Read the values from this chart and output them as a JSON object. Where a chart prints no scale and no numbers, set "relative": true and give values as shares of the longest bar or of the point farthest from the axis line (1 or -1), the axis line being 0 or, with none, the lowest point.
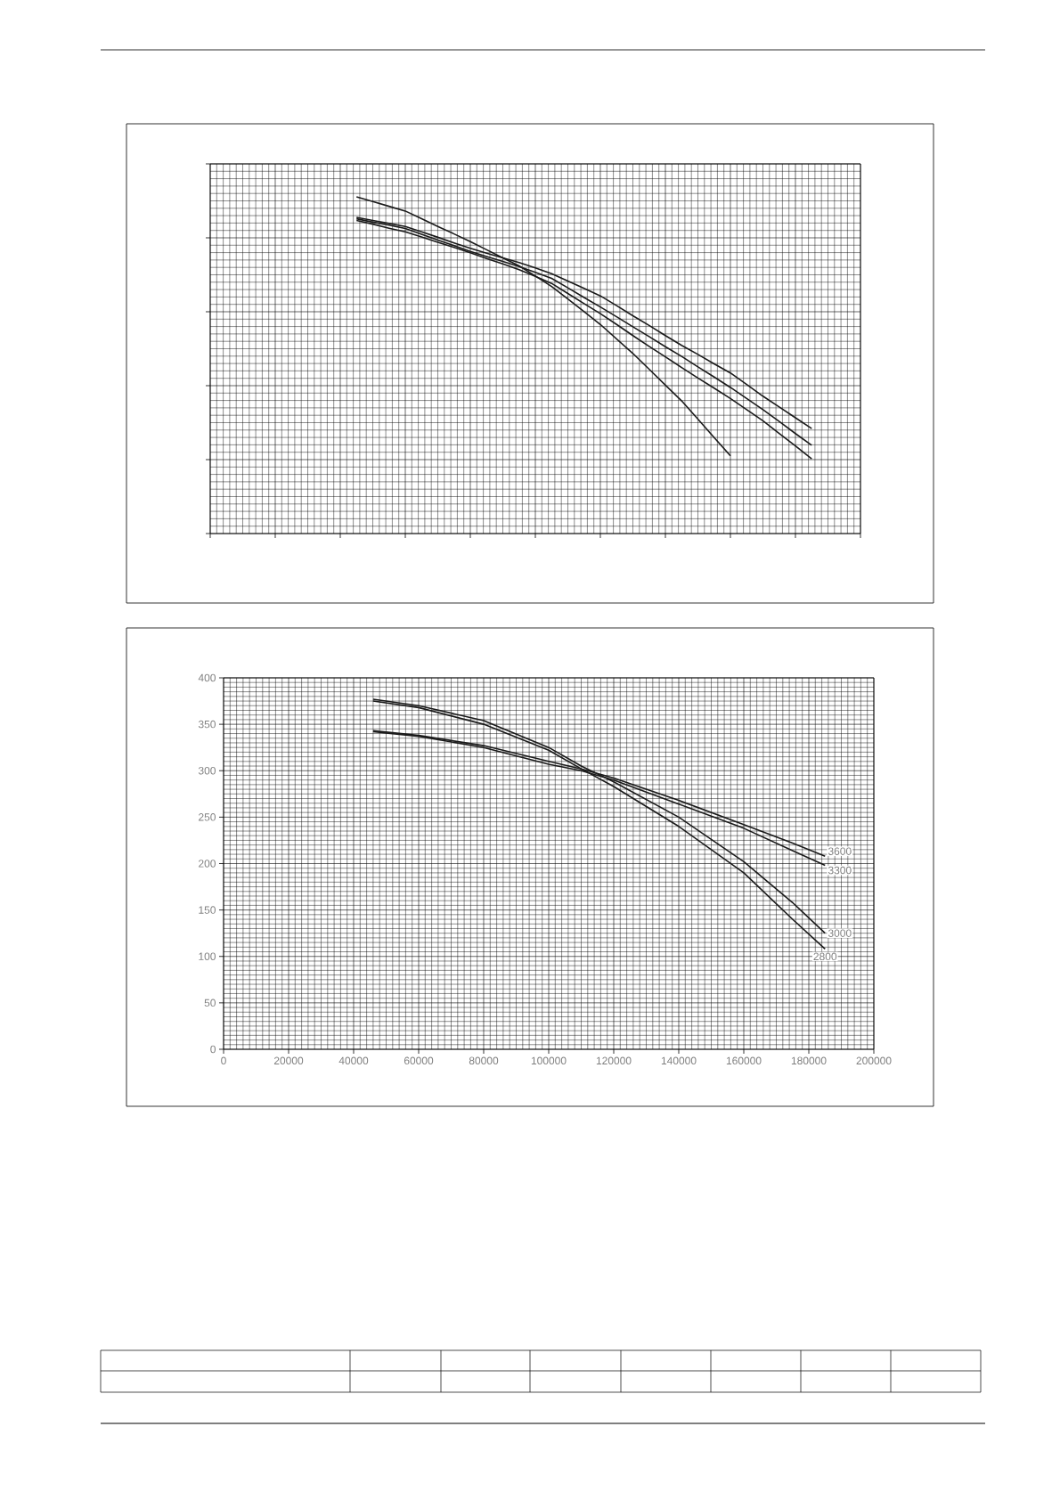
{
  "chart_data": [
    {
      "type": "line",
      "relative": true,
      "grid": true,
      "categories": [
        null,
        null,
        null,
        null,
        null,
        null,
        null,
        null,
        null,
        null,
        null,
        null,
        null,
        null,
        null,
        null,
        null,
        null,
        null,
        null,
        null,
        null,
        null,
        null,
        null,
        null,
        null,
        null,
        null,
        null,
        null,
        null,
        null,
        null,
        null,
        null,
        null,
        null,
        null,
        null,
        null
      ],
      "series": [
        {
          "color": "#1a1a1a",
          "values": [
            null,
            null,
            null,
            null,
            null,
            null,
            null,
            null,
            null,
            1,
            0.986,
            0.972,
            0.958,
            0.935,
            0.912,
            0.89,
            0.867,
            0.843,
            0.819,
            0.795,
            0.765,
            0.734,
            0.697,
            0.659,
            0.621,
            0.578,
            0.535,
            0.488,
            0.441,
            0.394,
            0.34,
            0.285,
            0.231,
            null,
            null,
            null,
            null,
            null,
            null,
            null,
            null
          ]
        },
        {
          "color": "#1a1a1a",
          "values": [
            null,
            null,
            null,
            null,
            null,
            null,
            null,
            null,
            null,
            0.939,
            0.93,
            0.921,
            0.912,
            0.896,
            0.88,
            0.863,
            0.847,
            0.833,
            0.819,
            0.805,
            0.789,
            0.772,
            0.75,
            0.728,
            0.706,
            0.677,
            0.647,
            0.618,
            0.588,
            0.559,
            0.532,
            0.504,
            0.477,
            0.443,
            0.408,
            0.376,
            0.344,
            0.312,
            null,
            null,
            null
          ]
        },
        {
          "color": "#1a1a1a",
          "values": [
            null,
            null,
            null,
            null,
            null,
            null,
            null,
            null,
            null,
            0.935,
            0.925,
            0.916,
            0.906,
            0.889,
            0.872,
            0.855,
            0.838,
            0.823,
            0.808,
            0.793,
            0.776,
            0.758,
            0.73,
            0.701,
            0.673,
            0.644,
            0.614,
            0.585,
            0.555,
            0.526,
            0.495,
            0.465,
            0.434,
            0.401,
            0.368,
            0.333,
            0.297,
            0.262,
            null,
            null,
            null
          ]
        },
        {
          "color": "#1a1a1a",
          "values": [
            null,
            null,
            null,
            null,
            null,
            null,
            null,
            null,
            null,
            0.93,
            0.919,
            0.907,
            0.896,
            0.881,
            0.865,
            0.85,
            0.834,
            0.817,
            0.801,
            0.784,
            0.764,
            0.743,
            0.713,
            0.683,
            0.653,
            0.621,
            0.588,
            0.556,
            0.525,
            0.493,
            0.462,
            0.432,
            0.401,
            0.368,
            0.335,
            0.297,
            0.26,
            0.222,
            null,
            null,
            null
          ]
        }
      ]
    },
    {
      "type": "line",
      "grid": true,
      "xlim": [
        0,
        200000
      ],
      "ylim": [
        0,
        400
      ],
      "xticks": [
        0,
        20000,
        40000,
        60000,
        80000,
        100000,
        120000,
        140000,
        160000,
        180000,
        200000
      ],
      "yticks": [
        0,
        50,
        100,
        150,
        200,
        250,
        300,
        350,
        400
      ],
      "x": [
        46000,
        60000,
        80000,
        100000,
        110000,
        120000,
        140000,
        160000,
        175000,
        185000
      ],
      "series": [
        {
          "name": "3600",
          "color": "#1a1a1a",
          "values": [
            343,
            338,
            327,
            310,
            302,
            292,
            268,
            242,
            222,
            208
          ]
        },
        {
          "name": "3300",
          "color": "#1a1a1a",
          "values": [
            342,
            337,
            325,
            307,
            300,
            290,
            264,
            238,
            214,
            198
          ]
        },
        {
          "name": "3000",
          "color": "#1a1a1a",
          "values": [
            377,
            370,
            354,
            325,
            305,
            288,
            250,
            202,
            158,
            125
          ]
        },
        {
          "name": "2800",
          "color": "#1a1a1a",
          "values": [
            375,
            368,
            350,
            322,
            302,
            283,
            240,
            190,
            140,
            108
          ]
        }
      ]
    }
  ]
}
